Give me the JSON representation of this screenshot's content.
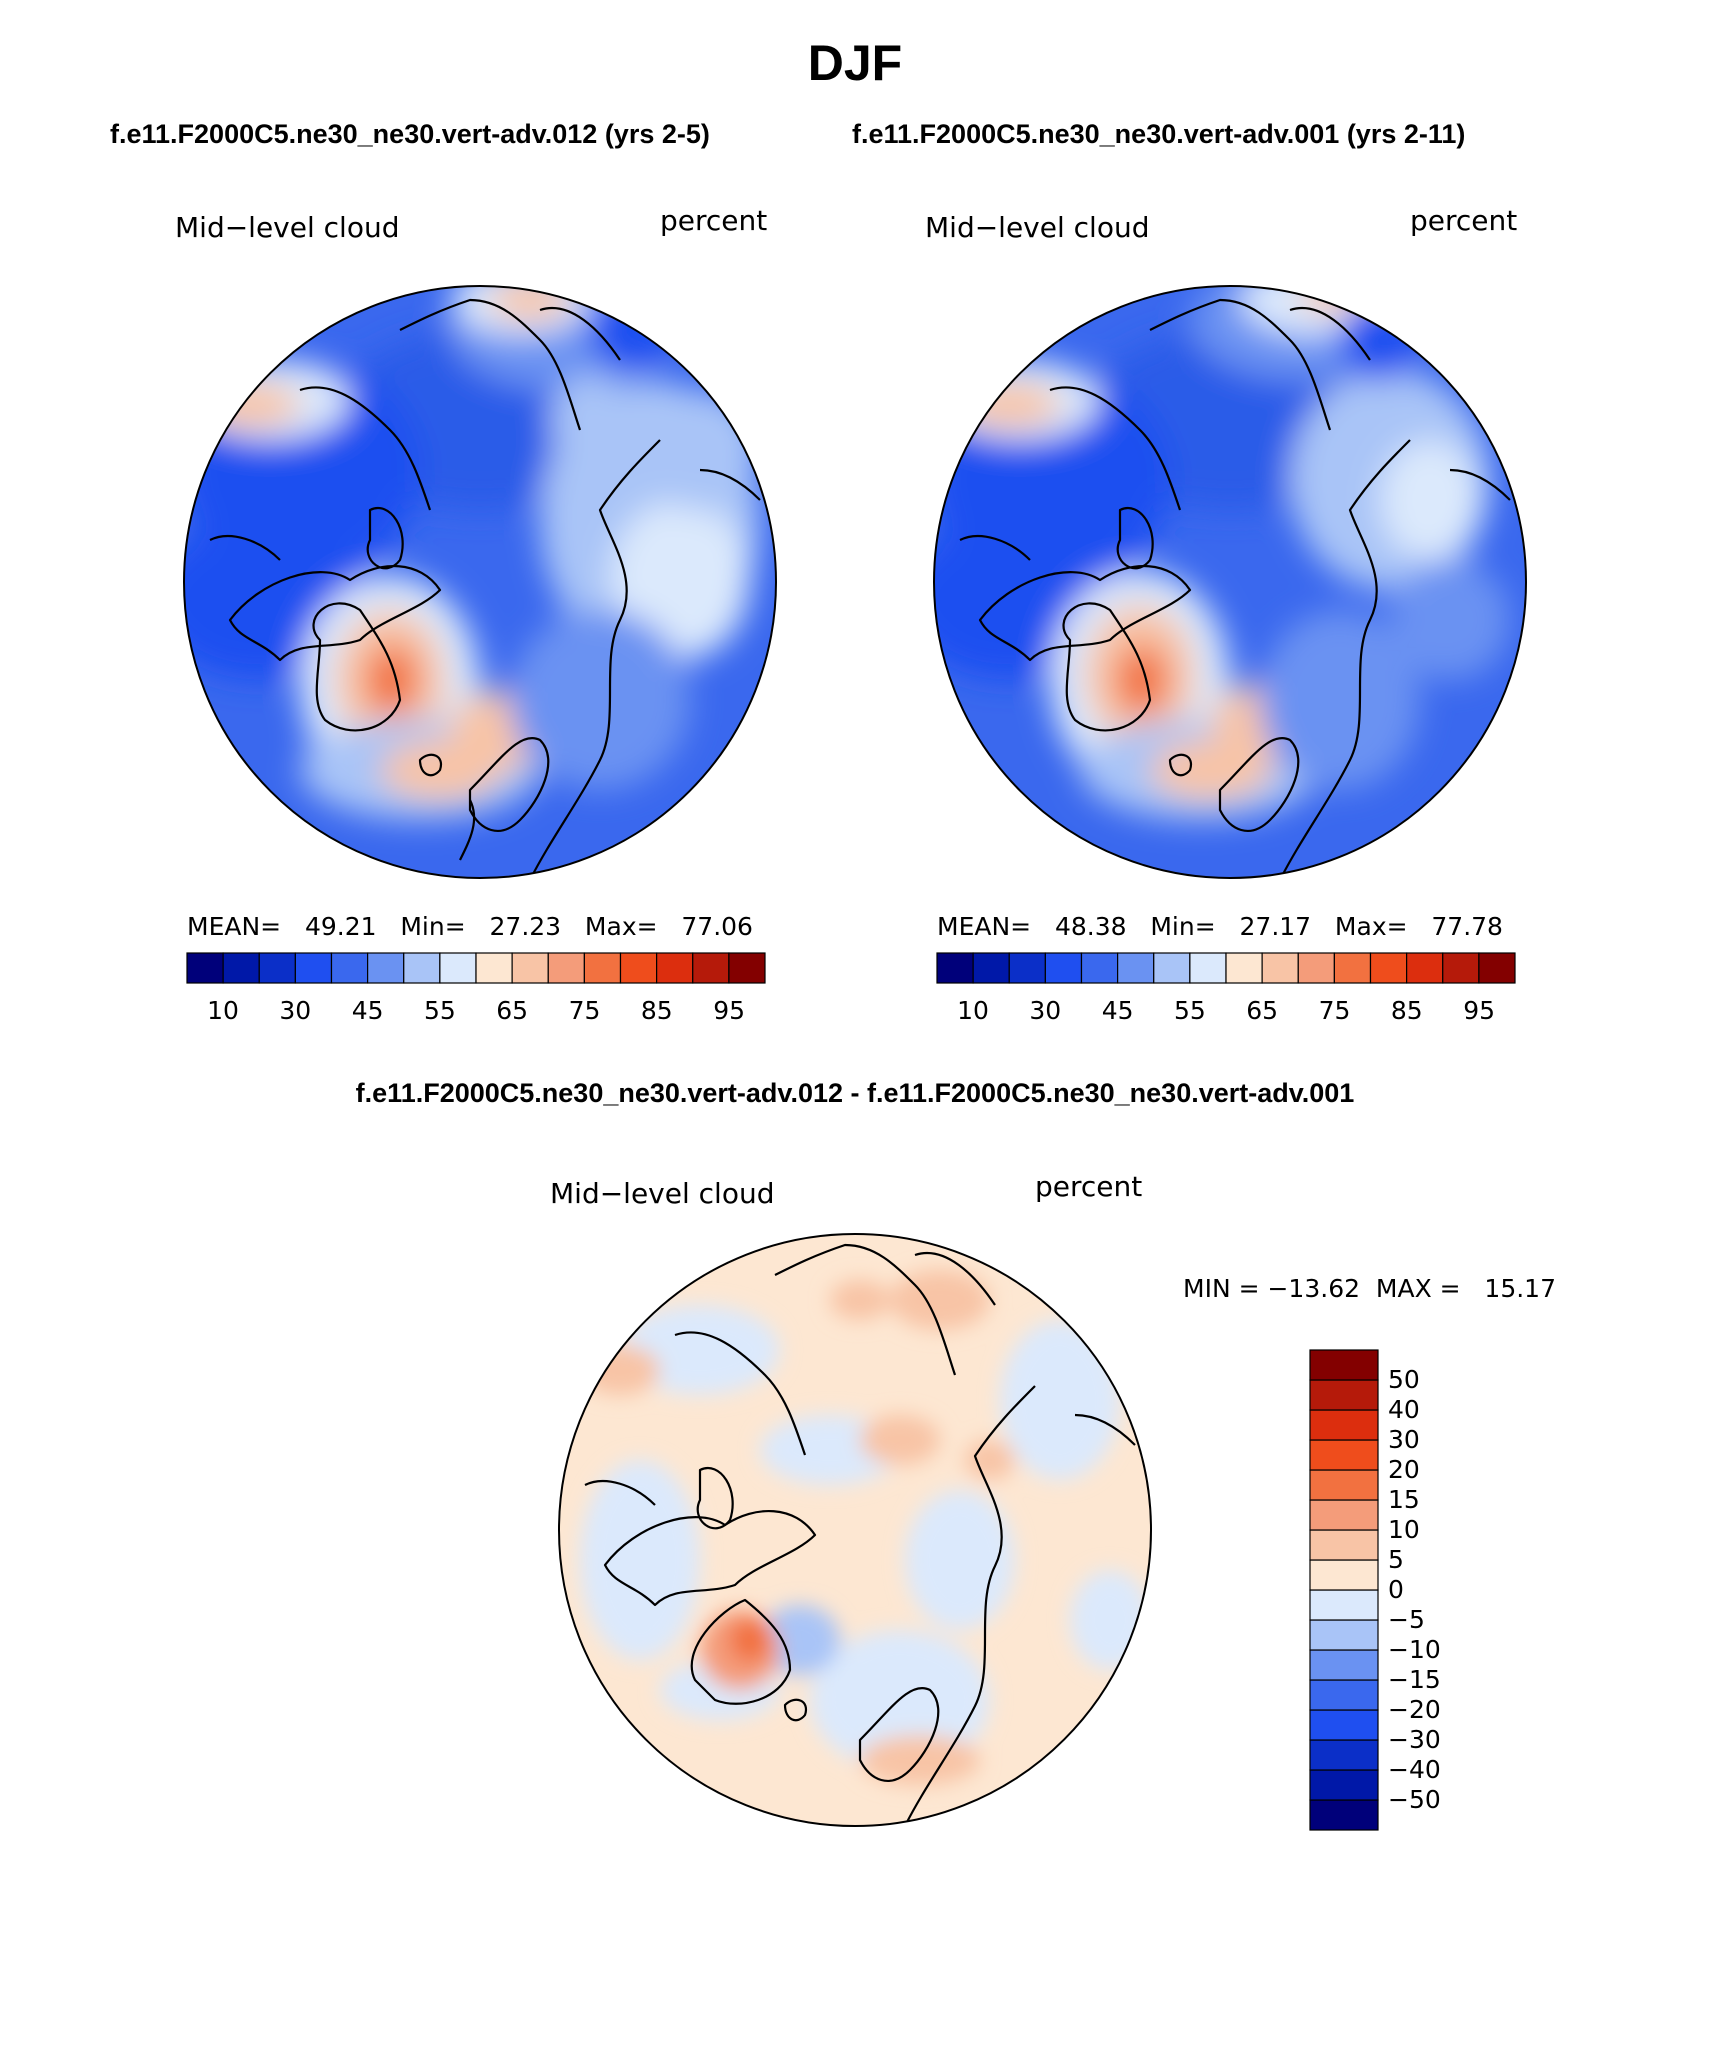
{
  "chart_data": {
    "type": "polar contour maps",
    "title": "DJF",
    "panel_titles": [
      "f.e11.F2000C5.ne30_ne30.vert-adv.012 (yrs 2-5)",
      "f.e11.F2000C5.ne30_ne30.vert-adv.001 (yrs 2-11)"
    ],
    "diff_title": "f.e11.F2000C5.ne30_ne30.vert-adv.012 - f.e11.F2000C5.ne30_ne30.vert-adv.001",
    "maps": [
      {
        "variable": "Mid−level cloud",
        "units": "percent",
        "stats_text": "MEAN=   49.21   Min=   27.23   Max=   77.06",
        "mean": 49.21,
        "min": 27.23,
        "max": 77.06
      },
      {
        "variable": "Mid−level cloud",
        "units": "percent",
        "stats_text": "MEAN=   48.38   Min=   27.17   Max=   77.78",
        "mean": 48.38,
        "min": 27.17,
        "max": 77.78
      },
      {
        "variable": "Mid−level cloud",
        "units": "percent",
        "stats_text": "MIN = −13.62  MAX =   15.17",
        "min": -13.62,
        "max": 15.17
      }
    ],
    "colorbar_abs": {
      "colors": [
        "#00007a",
        "#0018a8",
        "#0b2fc8",
        "#1f4ff0",
        "#3a68ee",
        "#6a92f2",
        "#a9c4f7",
        "#dbe9fc",
        "#fde7d2",
        "#f8c4a6",
        "#f49c7a",
        "#f27140",
        "#ef4d1c",
        "#dc2e0e",
        "#b51a0a",
        "#830000"
      ],
      "tick_labels": [
        "10",
        "30",
        "45",
        "55",
        "65",
        "75",
        "85",
        "95"
      ]
    },
    "colorbar_diff": {
      "colors": [
        "#00007a",
        "#0018a8",
        "#0b2fc8",
        "#1f4ff0",
        "#3a68ee",
        "#6a92f2",
        "#a9c4f7",
        "#dbe9fc",
        "#fde7d2",
        "#f8c4a6",
        "#f49c7a",
        "#f27140",
        "#ef4d1c",
        "#dc2e0e",
        "#b51a0a",
        "#830000"
      ],
      "tick_labels": [
        "−50",
        "−40",
        "−30",
        "−20",
        "−15",
        "−10",
        "−5",
        "0",
        "5",
        "10",
        "15",
        "20",
        "30",
        "40",
        "50"
      ]
    }
  }
}
